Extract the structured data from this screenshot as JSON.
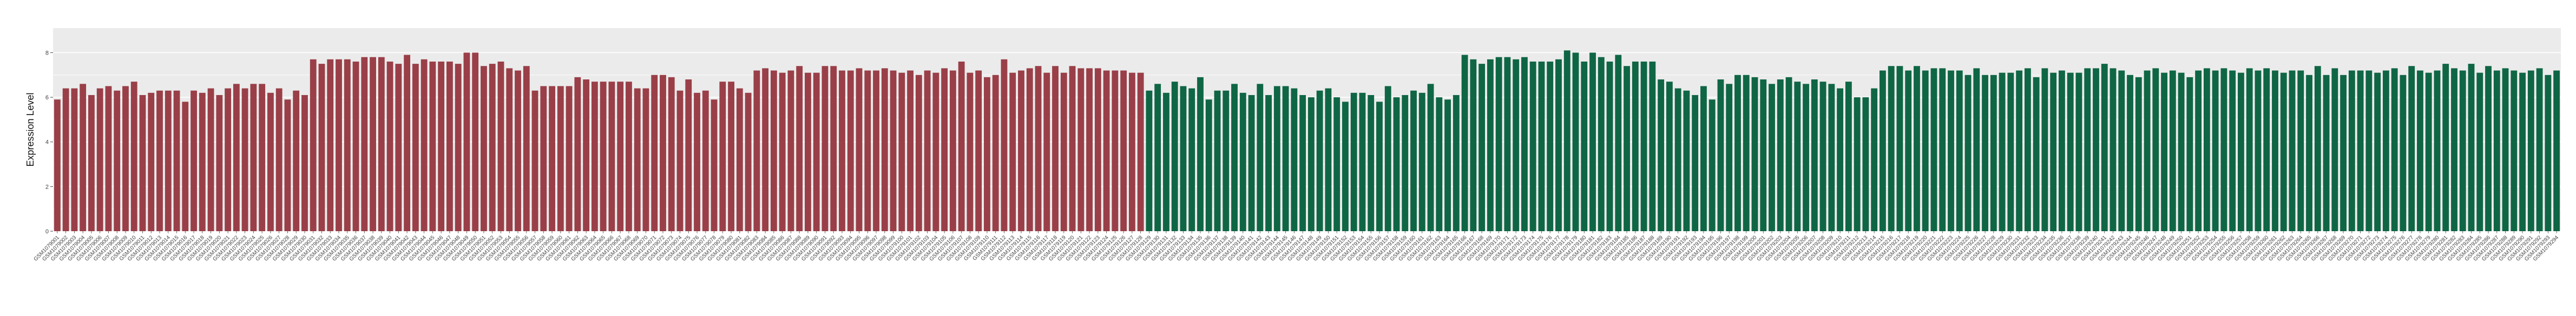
{
  "chart_data": {
    "type": "bar",
    "title": "",
    "xlabel": "",
    "ylabel": "Expression Level",
    "ylim": [
      0,
      9.1
    ],
    "yticks": [
      0,
      2,
      4,
      6,
      8
    ],
    "ytick_labels": [
      "0",
      "2",
      "4",
      "6",
      "8"
    ],
    "grid": true,
    "legend": "none",
    "colors": {
      "group_1": "#9a3f48",
      "group_2": "#0f6645",
      "panel": "#ebebeb",
      "gridline": "#ffffff"
    },
    "groups": [
      {
        "color": "#9a3f48",
        "categories": [
          "GSM1079001",
          "GSM1079002",
          "GSM1079003",
          "GSM1079004",
          "GSM1079005",
          "GSM1079006",
          "GSM1079007",
          "GSM1079008",
          "GSM1079009",
          "GSM1079010",
          "GSM1079011",
          "GSM1079012",
          "GSM1079013",
          "GSM1079014",
          "GSM1079015",
          "GSM1079016",
          "GSM1079017",
          "GSM1079018",
          "GSM1079019",
          "GSM1079020",
          "GSM1079021",
          "GSM1079022",
          "GSM1079023",
          "GSM1079024",
          "GSM1079025",
          "GSM1079026",
          "GSM1079027",
          "GSM1079028",
          "GSM1079029",
          "GSM1079030",
          "GSM1079031",
          "GSM1079032",
          "GSM1079033",
          "GSM1079034",
          "GSM1079035",
          "GSM1079036",
          "GSM1079037",
          "GSM1079038",
          "GSM1079039",
          "GSM1079040",
          "GSM1079041",
          "GSM1079042",
          "GSM1079043",
          "GSM1079044",
          "GSM1079045",
          "GSM1079046",
          "GSM1079047",
          "GSM1079048",
          "GSM1079049",
          "GSM1079050",
          "GSM1079051",
          "GSM1079052",
          "GSM1079053",
          "GSM1079054",
          "GSM1079055",
          "GSM1079056",
          "GSM1079057",
          "GSM1079058",
          "GSM1079059",
          "GSM1079060",
          "GSM1079061",
          "GSM1079062",
          "GSM1079063",
          "GSM1079064",
          "GSM1079065",
          "GSM1079066",
          "GSM1079067",
          "GSM1079068",
          "GSM1079069",
          "GSM1079070",
          "GSM1079071",
          "GSM1079072",
          "GSM1079073",
          "GSM1079074",
          "GSM1079075",
          "GSM1079076",
          "GSM1079077",
          "GSM1079078",
          "GSM1079079",
          "GSM1079080",
          "GSM1079081",
          "GSM1079082",
          "GSM1079083",
          "GSM1079084",
          "GSM1079085",
          "GSM1079086",
          "GSM1079087",
          "GSM1079088",
          "GSM1079089",
          "GSM1079090",
          "GSM1079091",
          "GSM1079092",
          "GSM1079093",
          "GSM1079094",
          "GSM1079095",
          "GSM1079096",
          "GSM1079097",
          "GSM1079098",
          "GSM1079099",
          "GSM1079100",
          "GSM1079101",
          "GSM1079102",
          "GSM1079103",
          "GSM1079104",
          "GSM1079105",
          "GSM1079106",
          "GSM1079107",
          "GSM1079108",
          "GSM1079109",
          "GSM1079110",
          "GSM1079111",
          "GSM1079112",
          "GSM1079113",
          "GSM1079114",
          "GSM1079115",
          "GSM1079116",
          "GSM1079117",
          "GSM1079118",
          "GSM1079119",
          "GSM1079120",
          "GSM1079121",
          "GSM1079122",
          "GSM1079123",
          "GSM1079124",
          "GSM1079125",
          "GSM1079126",
          "GSM1079127",
          "GSM1079128"
        ],
        "values": [
          5.9,
          6.4,
          6.4,
          6.6,
          6.1,
          6.4,
          6.5,
          6.3,
          6.5,
          6.7,
          6.1,
          6.2,
          6.3,
          6.3,
          6.3,
          5.8,
          6.3,
          6.2,
          6.4,
          6.1,
          6.4,
          6.6,
          6.4,
          6.6,
          6.6,
          6.2,
          6.4,
          5.9,
          6.3,
          6.1,
          7.7,
          7.5,
          7.7,
          7.7,
          7.7,
          7.6,
          7.8,
          7.8,
          7.8,
          7.6,
          7.5,
          7.9,
          7.5,
          7.7,
          7.6,
          7.6,
          7.6,
          7.5,
          8.0,
          8.0,
          7.4,
          7.5,
          7.6,
          7.3,
          7.2,
          7.4,
          6.3,
          6.5,
          6.5,
          6.5,
          6.5,
          6.9,
          6.8,
          6.7,
          6.7,
          6.7,
          6.7,
          6.7,
          6.4,
          6.4,
          7.0,
          7.0,
          6.9,
          6.3,
          6.8,
          6.2,
          6.3,
          5.9,
          6.7,
          6.7,
          6.4,
          6.2,
          7.2,
          7.3,
          7.2,
          7.1,
          7.2,
          7.4,
          7.1,
          7.1,
          7.4,
          7.4,
          7.2,
          7.2,
          7.3,
          7.2,
          7.2,
          7.3,
          7.2,
          7.1,
          7.2,
          7.0,
          7.2,
          7.1,
          7.3,
          7.2,
          7.6,
          7.1,
          7.2,
          6.9,
          7.0,
          7.7,
          7.1,
          7.2,
          7.3,
          7.4,
          7.1,
          7.4,
          7.1,
          7.4,
          7.3,
          7.3,
          7.3,
          7.2,
          7.2,
          7.2,
          7.1,
          7.1
        ]
      },
      {
        "color": "#0f6645",
        "categories": [
          "GSM1079129",
          "GSM1079130",
          "GSM1079131",
          "GSM1079132",
          "GSM1079133",
          "GSM1079134",
          "GSM1079135",
          "GSM1079136",
          "GSM1079137",
          "GSM1079138",
          "GSM1079139",
          "GSM1079140",
          "GSM1079141",
          "GSM1079142",
          "GSM1079143",
          "GSM1079144",
          "GSM1079145",
          "GSM1079146",
          "GSM1079147",
          "GSM1079148",
          "GSM1079149",
          "GSM1079150",
          "GSM1079151",
          "GSM1079152",
          "GSM1079153",
          "GSM1079154",
          "GSM1079155",
          "GSM1079156",
          "GSM1079157",
          "GSM1079158",
          "GSM1079159",
          "GSM1079160",
          "GSM1079161",
          "GSM1079162",
          "GSM1079163",
          "GSM1079164",
          "GSM1079165",
          "GSM1079166",
          "GSM1079167",
          "GSM1079168",
          "GSM1079169",
          "GSM1079170",
          "GSM1079171",
          "GSM1079172",
          "GSM1079173",
          "GSM1079174",
          "GSM1079175",
          "GSM1079176",
          "GSM1079177",
          "GSM1079178",
          "GSM1079179",
          "GSM1079180",
          "GSM1079181",
          "GSM1079182",
          "GSM1079183",
          "GSM1079184",
          "GSM1079185",
          "GSM1079186",
          "GSM1079187",
          "GSM1079188",
          "GSM1079189",
          "GSM1079190",
          "GSM1079191",
          "GSM1079192",
          "GSM1079193",
          "GSM1079194",
          "GSM1079195",
          "GSM1079196",
          "GSM1079197",
          "GSM1079198",
          "GSM1079199",
          "GSM1079200",
          "GSM1079201",
          "GSM1079202",
          "GSM1079203",
          "GSM1079204",
          "GSM1079205",
          "GSM1079206",
          "GSM1079207",
          "GSM1079208",
          "GSM1079209",
          "GSM1079210",
          "GSM1079211",
          "GSM1079212",
          "GSM1079213",
          "GSM1079214",
          "GSM1079215",
          "GSM1079216",
          "GSM1079217",
          "GSM1079218",
          "GSM1079219",
          "GSM1079220",
          "GSM1079221",
          "GSM1079222",
          "GSM1079223",
          "GSM1079224",
          "GSM1079225",
          "GSM1079226",
          "GSM1079227",
          "GSM1079228",
          "GSM1079229",
          "GSM1079230",
          "GSM1079231",
          "GSM1079232",
          "GSM1079233",
          "GSM1079234",
          "GSM1079235",
          "GSM1079236",
          "GSM1079237",
          "GSM1079238",
          "GSM1079239",
          "GSM1079240",
          "GSM1079241",
          "GSM1079242",
          "GSM1079243",
          "GSM1079244",
          "GSM1079245",
          "GSM1079246",
          "GSM1079247",
          "GSM1079248",
          "GSM1079249",
          "GSM1079250",
          "GSM1079251",
          "GSM1079252",
          "GSM1079253",
          "GSM1079254",
          "GSM1079255",
          "GSM1079256",
          "GSM1079257",
          "GSM1079258",
          "GSM1079259",
          "GSM1079260",
          "GSM1079261",
          "GSM1079262",
          "GSM1079263",
          "GSM1079264",
          "GSM1079265",
          "GSM1079266",
          "GSM1079267",
          "GSM1079268",
          "GSM1079269",
          "GSM1079270",
          "GSM1079271",
          "GSM1079272",
          "GSM1079273",
          "GSM1079274",
          "GSM1079275",
          "GSM1079276",
          "GSM1079277",
          "GSM1079278",
          "GSM1079279",
          "GSM1079280",
          "GSM1079281",
          "GSM1079282",
          "GSM1079283",
          "GSM1079284",
          "GSM1079285",
          "GSM1079286",
          "GSM1079287",
          "GSM1079288",
          "GSM1079289",
          "GSM1079290",
          "GSM1079291",
          "GSM1079292",
          "GSM1079293",
          "GSM1079294"
        ],
        "values": [
          6.3,
          6.6,
          6.2,
          6.7,
          6.5,
          6.4,
          6.9,
          5.9,
          6.3,
          6.3,
          6.6,
          6.2,
          6.1,
          6.6,
          6.1,
          6.5,
          6.5,
          6.4,
          6.1,
          6.0,
          6.3,
          6.4,
          6.0,
          5.8,
          6.2,
          6.2,
          6.1,
          5.8,
          6.5,
          6.0,
          6.1,
          6.3,
          6.2,
          6.6,
          6.0,
          5.9,
          6.1,
          7.9,
          7.7,
          7.5,
          7.7,
          7.8,
          7.8,
          7.7,
          7.8,
          7.6,
          7.6,
          7.6,
          7.7,
          8.1,
          8.0,
          7.6,
          8.0,
          7.8,
          7.6,
          7.9,
          7.4,
          7.6,
          7.6,
          7.6,
          6.8,
          6.7,
          6.4,
          6.3,
          6.1,
          6.5,
          5.9,
          6.8,
          6.6,
          7.0,
          7.0,
          6.9,
          6.8,
          6.6,
          6.8,
          6.9,
          6.7,
          6.6,
          6.8,
          6.7,
          6.6,
          6.4,
          6.7,
          6.0,
          6.0,
          6.4,
          7.2,
          7.4,
          7.4,
          7.2,
          7.4,
          7.2,
          7.3,
          7.3,
          7.2,
          7.2,
          7.0,
          7.3,
          7.0,
          7.0,
          7.1,
          7.1,
          7.2,
          7.3,
          6.9,
          7.3,
          7.1,
          7.2,
          7.1,
          7.1,
          7.3,
          7.3,
          7.5,
          7.3,
          7.2,
          7.0,
          6.9,
          7.2,
          7.3,
          7.1,
          7.2,
          7.1,
          6.9,
          7.2,
          7.3,
          7.2,
          7.3,
          7.2,
          7.1,
          7.3,
          7.2,
          7.3,
          7.2,
          7.1,
          7.2,
          7.2,
          7.0,
          7.4,
          7.0,
          7.3,
          7.0,
          7.2,
          7.2,
          7.2,
          7.1,
          7.2,
          7.3,
          7.0,
          7.4,
          7.2,
          7.1,
          7.2,
          7.5,
          7.3,
          7.2,
          7.5,
          7.1,
          7.4,
          7.2,
          7.3,
          7.2,
          7.1,
          7.2,
          7.3,
          7.0,
          7.2
        ]
      }
    ]
  }
}
